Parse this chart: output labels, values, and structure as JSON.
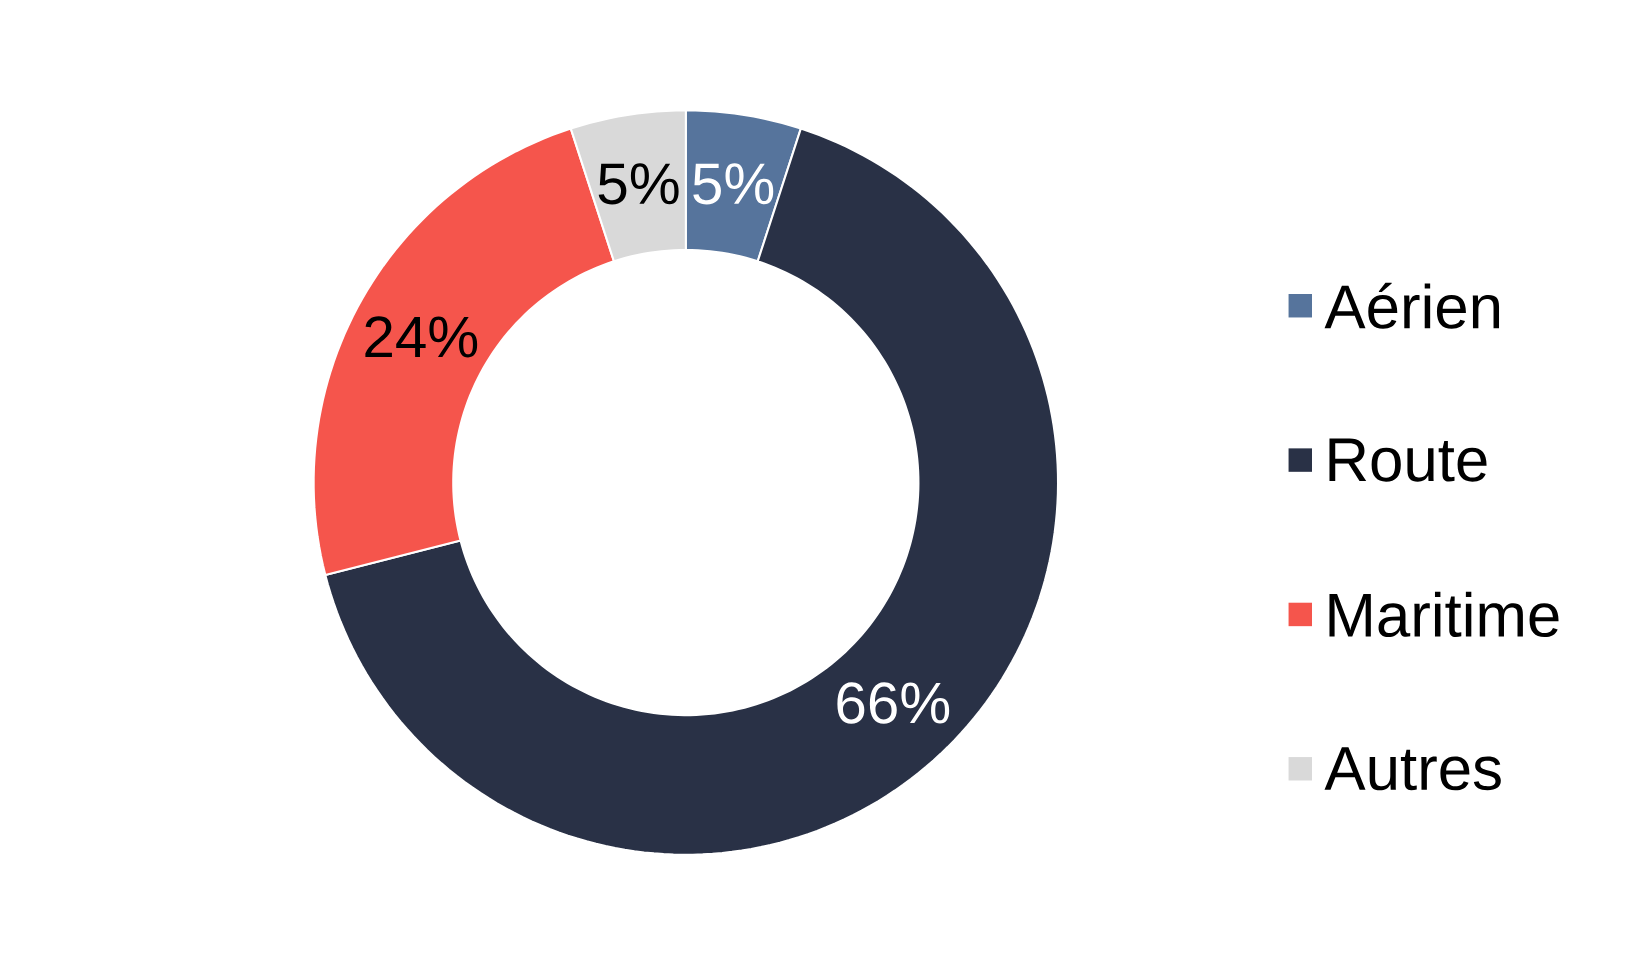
{
  "chart_data": {
    "type": "donut",
    "categories": [
      "Aérien",
      "Route",
      "Maritime",
      "Autres"
    ],
    "values": [
      5,
      66,
      24,
      5
    ],
    "colors": [
      "#56749c",
      "#293146",
      "#f5554c",
      "#d9d9d9"
    ],
    "value_labels": [
      "5%",
      "66%",
      "24%",
      "5%"
    ],
    "legend": "right"
  }
}
